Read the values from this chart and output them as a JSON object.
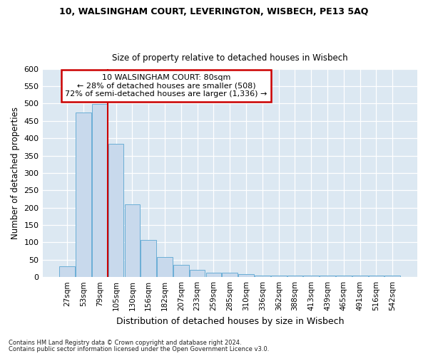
{
  "title1": "10, WALSINGHAM COURT, LEVERINGTON, WISBECH, PE13 5AQ",
  "title2": "Size of property relative to detached houses in Wisbech",
  "xlabel": "Distribution of detached houses by size in Wisbech",
  "ylabel": "Number of detached properties",
  "footnote1": "Contains HM Land Registry data © Crown copyright and database right 2024.",
  "footnote2": "Contains public sector information licensed under the Open Government Licence v3.0.",
  "categories": [
    "27sqm",
    "53sqm",
    "79sqm",
    "105sqm",
    "130sqm",
    "156sqm",
    "182sqm",
    "207sqm",
    "233sqm",
    "259sqm",
    "285sqm",
    "310sqm",
    "336sqm",
    "362sqm",
    "388sqm",
    "413sqm",
    "439sqm",
    "465sqm",
    "491sqm",
    "516sqm",
    "542sqm"
  ],
  "values": [
    32,
    475,
    498,
    383,
    210,
    106,
    57,
    35,
    21,
    13,
    12,
    9,
    5,
    5,
    5,
    5,
    5,
    5,
    5,
    5,
    5
  ],
  "bar_fill_color": "#c8d9ec",
  "bar_edge_color": "#6aaed6",
  "subject_bar_index": 2,
  "subject_line_color": "#cc0000",
  "annotation_line1": "10 WALSINGHAM COURT: 80sqm",
  "annotation_line2": "← 28% of detached houses are smaller (508)",
  "annotation_line3": "72% of semi-detached houses are larger (1,336) →",
  "annotation_box_edgecolor": "#cc0000",
  "ylim": [
    0,
    600
  ],
  "yticks": [
    0,
    50,
    100,
    150,
    200,
    250,
    300,
    350,
    400,
    450,
    500,
    550,
    600
  ],
  "plot_bg_color": "#dce8f2",
  "fig_bg_color": "#ffffff",
  "grid_color": "#ffffff",
  "title_fontsize": 9,
  "subtitle_fontsize": 8.5
}
